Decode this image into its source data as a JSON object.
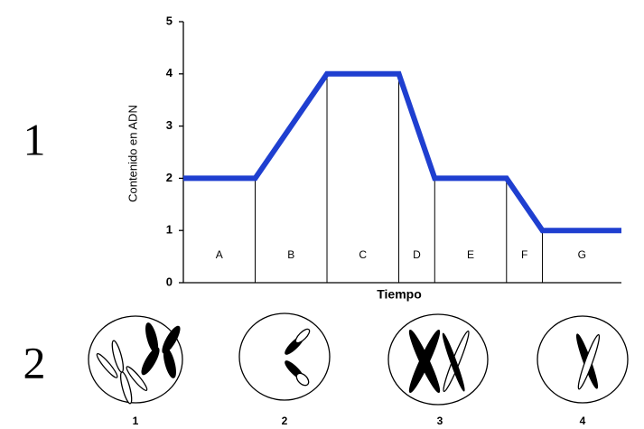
{
  "chart_data": {
    "type": "line",
    "y_label": "Contenido en ADN",
    "x_label": "Tiempo",
    "x": [
      0,
      1,
      2,
      3,
      3.5,
      4.5,
      5,
      6.1
    ],
    "series": [
      {
        "color": "#1f3fd0",
        "values": [
          2,
          2,
          4,
          4,
          2,
          2,
          1,
          1
        ]
      }
    ],
    "xlim": [
      0,
      6.1
    ],
    "ylim": [
      0,
      5
    ],
    "yticks": [
      0,
      1,
      2,
      3,
      4,
      5
    ],
    "regions": [
      {
        "label": "A",
        "start": 0,
        "end": 1
      },
      {
        "label": "B",
        "start": 1,
        "end": 2
      },
      {
        "label": "C",
        "start": 2,
        "end": 3
      },
      {
        "label": "D",
        "start": 3,
        "end": 3.5
      },
      {
        "label": "E",
        "start": 3.5,
        "end": 4.5
      },
      {
        "label": "F",
        "start": 4.5,
        "end": 5
      },
      {
        "label": "G",
        "start": 5,
        "end": 6.1
      }
    ]
  },
  "figure": {
    "row_labels": [
      "1",
      "2"
    ],
    "cell_labels": [
      "1",
      "2",
      "3",
      "4"
    ]
  }
}
